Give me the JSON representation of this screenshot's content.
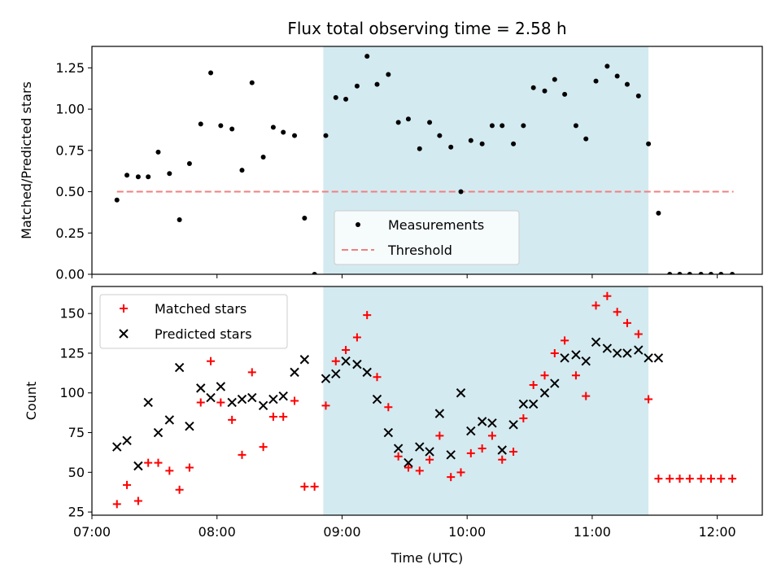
{
  "chart_data": {
    "type": "scatter",
    "title": "Flux total observing time = 2.58 h",
    "xlabel": "Time (UTC)",
    "xlim_hours": [
      7.0,
      12.36
    ],
    "x_ticks": [
      {
        "value": 7.0,
        "label": "07:00"
      },
      {
        "value": 8.0,
        "label": "08:00"
      },
      {
        "value": 9.0,
        "label": "09:00"
      },
      {
        "value": 10.0,
        "label": "10:00"
      },
      {
        "value": 11.0,
        "label": "11:00"
      },
      {
        "value": 12.0,
        "label": "12:00"
      }
    ],
    "highlight_span_hours": [
      8.85,
      11.45
    ],
    "colors": {
      "span": "#d3eaf0",
      "measurements": "#000000",
      "threshold": "#f08080",
      "matched": "#ff0000",
      "predicted": "#000000"
    },
    "panels": [
      {
        "ylabel": "Matched/Predicted stars",
        "ylim": [
          0,
          1.38
        ],
        "yticks": [
          "0.00",
          "0.25",
          "0.50",
          "0.75",
          "1.00",
          "1.25"
        ],
        "ytick_values": [
          0,
          0.25,
          0.5,
          0.75,
          1.0,
          1.25
        ],
        "legend": {
          "location": "lower center",
          "entries": [
            "Measurements",
            "Threshold"
          ]
        },
        "threshold": {
          "value": 0.5,
          "x_range": [
            7.2,
            12.13
          ]
        },
        "measurements": {
          "x": [
            7.2,
            7.28,
            7.37,
            7.45,
            7.53,
            7.62,
            7.7,
            7.78,
            7.87,
            7.95,
            8.03,
            8.12,
            8.2,
            8.28,
            8.37,
            8.45,
            8.53,
            8.62,
            8.7,
            8.78,
            8.87,
            8.95,
            9.03,
            9.12,
            9.2,
            9.28,
            9.37,
            9.45,
            9.53,
            9.62,
            9.7,
            9.78,
            9.87,
            9.95,
            10.03,
            10.12,
            10.2,
            10.28,
            10.37,
            10.45,
            10.53,
            10.62,
            10.7,
            10.78,
            10.87,
            10.95,
            11.03,
            11.12,
            11.2,
            11.28,
            11.37,
            11.45,
            11.53,
            11.62,
            11.7,
            11.78,
            11.87,
            11.95,
            12.03,
            12.12
          ],
          "y": [
            0.45,
            0.6,
            0.59,
            0.59,
            0.74,
            0.61,
            0.33,
            0.67,
            0.91,
            1.22,
            0.9,
            0.88,
            0.63,
            1.16,
            0.71,
            0.89,
            0.86,
            0.84,
            0.34,
            0.0,
            0.84,
            1.07,
            1.06,
            1.14,
            1.32,
            1.15,
            1.21,
            0.92,
            0.94,
            0.76,
            0.92,
            0.84,
            0.77,
            0.5,
            0.81,
            0.79,
            0.9,
            0.9,
            0.79,
            0.9,
            1.13,
            1.11,
            1.18,
            1.09,
            0.9,
            0.82,
            1.17,
            1.26,
            1.2,
            1.15,
            1.08,
            0.79,
            0.37,
            0.0,
            0.0,
            0.0,
            0.0,
            0.0,
            0.0,
            0.0
          ]
        }
      },
      {
        "ylabel": "Count",
        "ylim": [
          23,
          167
        ],
        "yticks": [
          "25",
          "50",
          "75",
          "100",
          "125",
          "150"
        ],
        "ytick_values": [
          25,
          50,
          75,
          100,
          125,
          150
        ],
        "legend": {
          "location": "upper left",
          "entries": [
            "Matched stars",
            "Predicted stars"
          ]
        },
        "matched": {
          "x": [
            7.2,
            7.28,
            7.37,
            7.45,
            7.53,
            7.62,
            7.7,
            7.78,
            7.87,
            7.95,
            8.03,
            8.12,
            8.2,
            8.28,
            8.37,
            8.45,
            8.53,
            8.62,
            8.7,
            8.78,
            8.87,
            8.95,
            9.03,
            9.12,
            9.2,
            9.28,
            9.37,
            9.45,
            9.53,
            9.62,
            9.7,
            9.78,
            9.87,
            9.95,
            10.03,
            10.12,
            10.2,
            10.28,
            10.37,
            10.45,
            10.53,
            10.62,
            10.7,
            10.78,
            10.87,
            10.95,
            11.03,
            11.12,
            11.2,
            11.28,
            11.37,
            11.45,
            11.53,
            11.62,
            11.7,
            11.78,
            11.87,
            11.95,
            12.03,
            12.12
          ],
          "y": [
            30,
            42,
            32,
            56,
            56,
            51,
            39,
            53,
            94,
            120,
            94,
            83,
            61,
            113,
            66,
            85,
            85,
            95,
            41,
            41,
            92,
            120,
            127,
            135,
            149,
            110,
            91,
            60,
            53,
            51,
            58,
            73,
            47,
            50,
            62,
            65,
            73,
            58,
            63,
            84,
            105,
            111,
            125,
            133,
            111,
            98,
            155,
            161,
            151,
            144,
            137,
            96,
            46,
            46,
            46,
            46,
            46,
            46,
            46,
            46
          ]
        },
        "predicted": {
          "x": [
            7.2,
            7.28,
            7.37,
            7.45,
            7.53,
            7.62,
            7.7,
            7.78,
            7.87,
            7.95,
            8.03,
            8.12,
            8.2,
            8.28,
            8.37,
            8.45,
            8.53,
            8.62,
            8.7,
            8.87,
            8.95,
            9.03,
            9.12,
            9.2,
            9.28,
            9.37,
            9.45,
            9.53,
            9.62,
            9.7,
            9.78,
            9.87,
            9.95,
            10.03,
            10.12,
            10.2,
            10.28,
            10.37,
            10.45,
            10.53,
            10.62,
            10.7,
            10.78,
            10.87,
            10.95,
            11.03,
            11.12,
            11.2,
            11.28,
            11.37,
            11.45,
            11.53
          ],
          "y": [
            66,
            70,
            54,
            94,
            75,
            83,
            116,
            79,
            103,
            97,
            104,
            94,
            96,
            97,
            92,
            96,
            98,
            113,
            121,
            109,
            112,
            120,
            118,
            113,
            96,
            75,
            65,
            56,
            66,
            63,
            87,
            61,
            100,
            76,
            82,
            81,
            64,
            80,
            93,
            93,
            100,
            106,
            122,
            124,
            120,
            132,
            128,
            125,
            125,
            127,
            122,
            122
          ]
        }
      }
    ]
  }
}
